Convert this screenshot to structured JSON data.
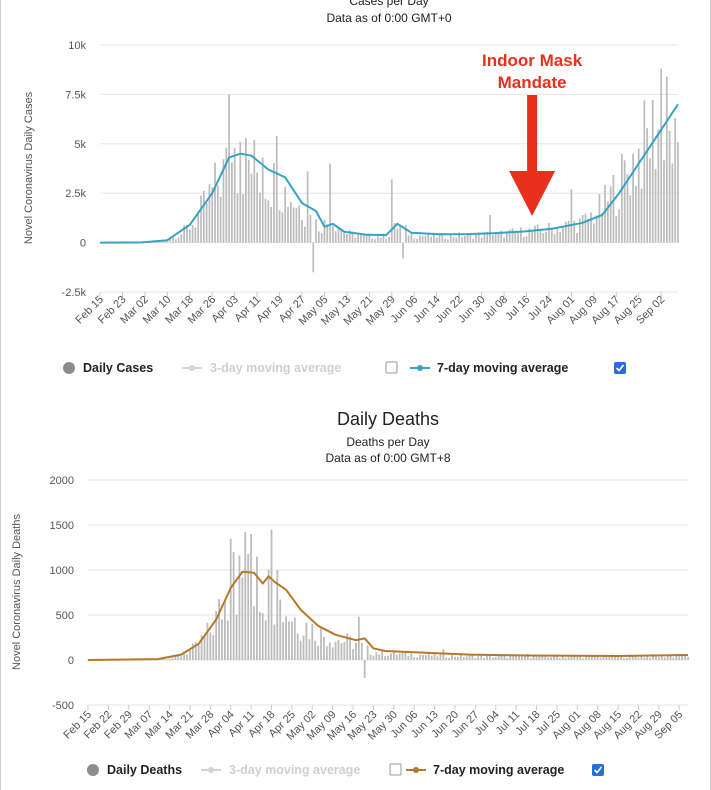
{
  "chart_data": [
    {
      "type": "bar",
      "title": "",
      "subtitle": "Cases per Day",
      "subtitle2": "Data as of 0:00 GMT+0",
      "ylabel": "Novel Coronavirus Daily Cases",
      "ylim": [
        -2500,
        10000
      ],
      "yticks": [
        -2500,
        0,
        2500,
        5000,
        7500,
        10000
      ],
      "ytick_labels": [
        "-2.5k",
        "0",
        "2.5k",
        "5k",
        "7.5k",
        "10k"
      ],
      "x_start": "2020-02-15",
      "x_end": "2020-09-08",
      "xtick_labels": [
        "Feb 15",
        "Feb 23",
        "Mar 02",
        "Mar 10",
        "Mar 18",
        "Mar 26",
        "Apr 03",
        "Apr 11",
        "Apr 19",
        "Apr 27",
        "May 05",
        "May 13",
        "May 21",
        "May 29",
        "Jun 06",
        "Jun 14",
        "Jun 22",
        "Jun 30",
        "Jul 08",
        "Jul 16",
        "Jul 24",
        "Aug 01",
        "Aug 09",
        "Aug 17",
        "Aug 25",
        "Sep 02"
      ],
      "xtick_dates": [
        "2020-02-15",
        "2020-02-23",
        "2020-03-02",
        "2020-03-10",
        "2020-03-18",
        "2020-03-26",
        "2020-04-03",
        "2020-04-11",
        "2020-04-19",
        "2020-04-27",
        "2020-05-05",
        "2020-05-13",
        "2020-05-21",
        "2020-05-29",
        "2020-06-06",
        "2020-06-14",
        "2020-06-22",
        "2020-06-30",
        "2020-07-08",
        "2020-07-16",
        "2020-07-24",
        "2020-08-01",
        "2020-08-09",
        "2020-08-17",
        "2020-08-25",
        "2020-09-02"
      ],
      "daily_anchors": [
        [
          "2020-02-15",
          0
        ],
        [
          "2020-03-01",
          10
        ],
        [
          "2020-03-08",
          80
        ],
        [
          "2020-03-15",
          500
        ],
        [
          "2020-03-20",
          1200
        ],
        [
          "2020-03-25",
          2500
        ],
        [
          "2020-03-30",
          3800
        ],
        [
          "2020-04-03",
          4500
        ],
        [
          "2020-04-08",
          4300
        ],
        [
          "2020-04-13",
          3700
        ],
        [
          "2020-04-18",
          3200
        ],
        [
          "2020-04-23",
          2500
        ],
        [
          "2020-04-28",
          1700
        ],
        [
          "2020-05-03",
          900
        ],
        [
          "2020-05-08",
          1200
        ],
        [
          "2020-05-13",
          500
        ],
        [
          "2020-05-20",
          350
        ],
        [
          "2020-05-27",
          350
        ],
        [
          "2020-05-31",
          900
        ],
        [
          "2020-06-06",
          400
        ],
        [
          "2020-06-15",
          350
        ],
        [
          "2020-06-25",
          400
        ],
        [
          "2020-07-05",
          450
        ],
        [
          "2020-07-15",
          600
        ],
        [
          "2020-07-22",
          700
        ],
        [
          "2020-07-29",
          900
        ],
        [
          "2020-08-05",
          1100
        ],
        [
          "2020-08-12",
          1900
        ],
        [
          "2020-08-18",
          3200
        ],
        [
          "2020-08-24",
          4600
        ],
        [
          "2020-08-30",
          6000
        ],
        [
          "2020-09-04",
          7000
        ],
        [
          "2020-09-08",
          7200
        ]
      ],
      "daily_spikes": [
        [
          "2020-04-01",
          7500
        ],
        [
          "2020-04-03",
          4800
        ],
        [
          "2020-04-05",
          5100
        ],
        [
          "2020-04-13",
          4300
        ],
        [
          "2020-04-18",
          5400
        ],
        [
          "2020-04-29",
          3600
        ],
        [
          "2020-05-01",
          -1500
        ],
        [
          "2020-05-07",
          4000
        ],
        [
          "2020-05-29",
          3200
        ],
        [
          "2020-06-02",
          -800
        ],
        [
          "2020-07-03",
          1400
        ],
        [
          "2020-08-01",
          2700
        ],
        [
          "2020-08-27",
          7200
        ],
        [
          "2020-09-02",
          8800
        ],
        [
          "2020-09-04",
          8400
        ],
        [
          "2020-09-06",
          4000
        ],
        [
          "2020-09-07",
          6300
        ]
      ],
      "series": [
        {
          "name": "Daily Cases",
          "color": "#999999"
        },
        {
          "name": "3-day moving average",
          "color": "#d0d0d0",
          "enabled": false
        },
        {
          "name": "7-day moving average",
          "color": "#35a3c2",
          "enabled": true,
          "points": [
            [
              "2020-02-15",
              0
            ],
            [
              "2020-03-01",
              10
            ],
            [
              "2020-03-10",
              120
            ],
            [
              "2020-03-18",
              900
            ],
            [
              "2020-03-26",
              2500
            ],
            [
              "2020-04-01",
              4300
            ],
            [
              "2020-04-05",
              4500
            ],
            [
              "2020-04-09",
              4400
            ],
            [
              "2020-04-15",
              3700
            ],
            [
              "2020-04-21",
              3300
            ],
            [
              "2020-04-27",
              2000
            ],
            [
              "2020-05-02",
              1600
            ],
            [
              "2020-05-05",
              800
            ],
            [
              "2020-05-08",
              950
            ],
            [
              "2020-05-12",
              550
            ],
            [
              "2020-05-20",
              400
            ],
            [
              "2020-05-27",
              380
            ],
            [
              "2020-05-31",
              950
            ],
            [
              "2020-06-05",
              500
            ],
            [
              "2020-06-15",
              420
            ],
            [
              "2020-06-25",
              430
            ],
            [
              "2020-07-05",
              480
            ],
            [
              "2020-07-15",
              560
            ],
            [
              "2020-07-25",
              700
            ],
            [
              "2020-08-05",
              1000
            ],
            [
              "2020-08-12",
              1400
            ],
            [
              "2020-08-18",
              2500
            ],
            [
              "2020-08-25",
              4000
            ],
            [
              "2020-09-01",
              5500
            ],
            [
              "2020-09-08",
              7000
            ]
          ]
        }
      ],
      "annotation": {
        "lines": [
          "Indoor Mask",
          "Mandate"
        ],
        "date": "2020-07-18",
        "color": "#e8301c"
      }
    },
    {
      "type": "bar",
      "title": "Daily Deaths",
      "subtitle": "Deaths per Day",
      "subtitle2": "Data as of 0:00 GMT+8",
      "ylabel": "Novel Coronavirus Daily Deaths",
      "ylim": [
        -500,
        2000
      ],
      "yticks": [
        -500,
        0,
        500,
        1000,
        1500,
        2000
      ],
      "ytick_labels": [
        "-500",
        "0",
        "500",
        "1000",
        "1500",
        "2000"
      ],
      "x_start": "2020-02-15",
      "x_end": "2020-09-08",
      "xtick_labels": [
        "Feb 15",
        "Feb 22",
        "Feb 29",
        "Mar 07",
        "Mar 14",
        "Mar 21",
        "Mar 28",
        "Apr 04",
        "Apr 11",
        "Apr 18",
        "Apr 25",
        "May 02",
        "May 09",
        "May 16",
        "May 23",
        "May 30",
        "Jun 06",
        "Jun 13",
        "Jun 20",
        "Jun 27",
        "Jul 04",
        "Jul 11",
        "Jul 18",
        "Jul 25",
        "Aug 01",
        "Aug 08",
        "Aug 15",
        "Aug 22",
        "Aug 29",
        "Sep 05"
      ],
      "xtick_dates": [
        "2020-02-15",
        "2020-02-22",
        "2020-02-29",
        "2020-03-07",
        "2020-03-14",
        "2020-03-21",
        "2020-03-28",
        "2020-04-04",
        "2020-04-11",
        "2020-04-18",
        "2020-04-25",
        "2020-05-02",
        "2020-05-09",
        "2020-05-16",
        "2020-05-23",
        "2020-05-30",
        "2020-06-06",
        "2020-06-13",
        "2020-06-20",
        "2020-06-27",
        "2020-07-04",
        "2020-07-11",
        "2020-07-18",
        "2020-07-25",
        "2020-08-01",
        "2020-08-08",
        "2020-08-15",
        "2020-08-22",
        "2020-08-29",
        "2020-09-05"
      ],
      "daily_anchors": [
        [
          "2020-02-15",
          0
        ],
        [
          "2020-03-10",
          5
        ],
        [
          "2020-03-17",
          40
        ],
        [
          "2020-03-23",
          150
        ],
        [
          "2020-03-28",
          350
        ],
        [
          "2020-04-02",
          700
        ],
        [
          "2020-04-07",
          950
        ],
        [
          "2020-04-12",
          900
        ],
        [
          "2020-04-17",
          820
        ],
        [
          "2020-04-22",
          620
        ],
        [
          "2020-04-28",
          450
        ],
        [
          "2020-05-04",
          320
        ],
        [
          "2020-05-10",
          250
        ],
        [
          "2020-05-17",
          200
        ],
        [
          "2020-05-22",
          100
        ],
        [
          "2020-05-27",
          80
        ],
        [
          "2020-06-10",
          60
        ],
        [
          "2020-07-01",
          40
        ],
        [
          "2020-08-01",
          40
        ],
        [
          "2020-09-08",
          50
        ]
      ],
      "daily_spikes": [
        [
          "2020-04-04",
          1350
        ],
        [
          "2020-04-05",
          1200
        ],
        [
          "2020-04-09",
          1420
        ],
        [
          "2020-04-11",
          1400
        ],
        [
          "2020-04-13",
          1150
        ],
        [
          "2020-04-18",
          1450
        ],
        [
          "2020-04-20",
          1000
        ],
        [
          "2020-05-18",
          480
        ],
        [
          "2020-05-20",
          -200
        ],
        [
          "2020-06-16",
          120
        ],
        [
          "2020-07-15",
          70
        ]
      ],
      "series": [
        {
          "name": "Daily Deaths",
          "color": "#999999"
        },
        {
          "name": "3-day moving average",
          "color": "#d0d0d0",
          "enabled": false
        },
        {
          "name": "7-day moving average",
          "color": "#b5782b",
          "enabled": true,
          "points": [
            [
              "2020-02-15",
              0
            ],
            [
              "2020-03-10",
              10
            ],
            [
              "2020-03-18",
              60
            ],
            [
              "2020-03-24",
              180
            ],
            [
              "2020-03-30",
              450
            ],
            [
              "2020-04-04",
              800
            ],
            [
              "2020-04-08",
              980
            ],
            [
              "2020-04-12",
              970
            ],
            [
              "2020-04-15",
              850
            ],
            [
              "2020-04-17",
              930
            ],
            [
              "2020-04-19",
              870
            ],
            [
              "2020-04-23",
              780
            ],
            [
              "2020-04-28",
              560
            ],
            [
              "2020-05-04",
              380
            ],
            [
              "2020-05-10",
              280
            ],
            [
              "2020-05-17",
              220
            ],
            [
              "2020-05-20",
              240
            ],
            [
              "2020-05-23",
              130
            ],
            [
              "2020-05-27",
              100
            ],
            [
              "2020-06-10",
              80
            ],
            [
              "2020-06-25",
              60
            ],
            [
              "2020-07-15",
              50
            ],
            [
              "2020-08-15",
              45
            ],
            [
              "2020-09-08",
              55
            ]
          ]
        }
      ]
    }
  ]
}
